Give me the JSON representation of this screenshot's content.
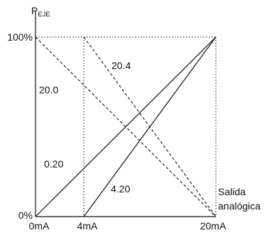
{
  "axes": {
    "y_label_main": "P",
    "y_label_sub": "EJE",
    "y_top_tick": "100%",
    "y_bottom_tick": "0%",
    "x_ticks": [
      "0mA",
      "4mA",
      "20mA"
    ],
    "x_label_line1": "Salida",
    "x_label_line2": "analógica"
  },
  "curve_labels": {
    "line_0_20": "0.20",
    "line_4_20": "4.20",
    "line_20_0": "20.0",
    "line_20_4": "20.4"
  }
}
